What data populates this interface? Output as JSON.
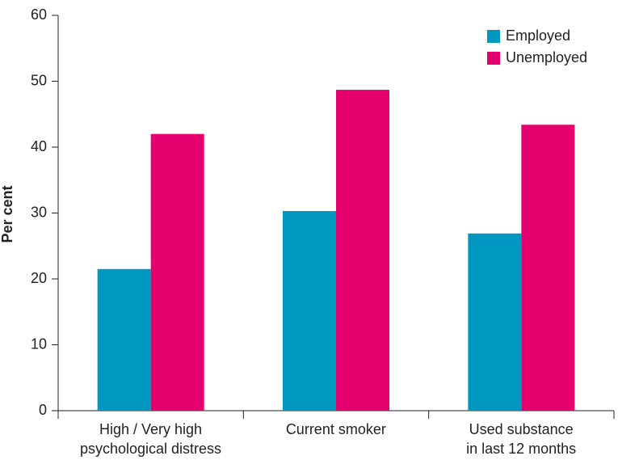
{
  "chart_data": {
    "type": "bar",
    "ylabel": "Per cent",
    "categories": [
      "High / Very high\npsychological distress",
      "Current smoker",
      "Used substance\nin last 12 months"
    ],
    "series": [
      {
        "name": "Employed",
        "color": "#0098c0",
        "values": [
          21.5,
          30.3,
          26.9
        ]
      },
      {
        "name": "Unemployed",
        "color": "#e5006d",
        "values": [
          42.0,
          48.7,
          43.4
        ]
      }
    ],
    "ylim": [
      0,
      60
    ],
    "yticks": [
      0,
      10,
      20,
      30,
      40,
      50,
      60
    ],
    "legend": "top-right"
  }
}
